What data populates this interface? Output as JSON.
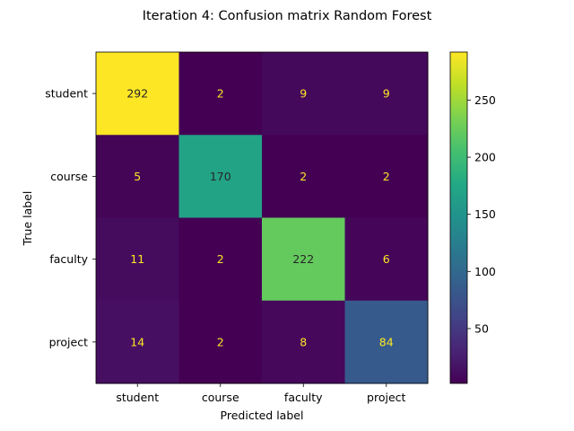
{
  "chart_data": {
    "type": "heatmap",
    "title": "Iteration 4: Confusion matrix Random Forest",
    "xlabel": "Predicted label",
    "ylabel": "True label",
    "x_categories": [
      "student",
      "course",
      "faculty",
      "project"
    ],
    "y_categories": [
      "student",
      "course",
      "faculty",
      "project"
    ],
    "values": [
      [
        292,
        2,
        9,
        9
      ],
      [
        5,
        170,
        2,
        2
      ],
      [
        11,
        2,
        222,
        6
      ],
      [
        14,
        2,
        8,
        84
      ]
    ],
    "colormap": "viridis",
    "colorbar": {
      "range": [
        2,
        292
      ],
      "ticks": [
        50,
        100,
        150,
        200,
        250
      ]
    },
    "grid": false
  }
}
